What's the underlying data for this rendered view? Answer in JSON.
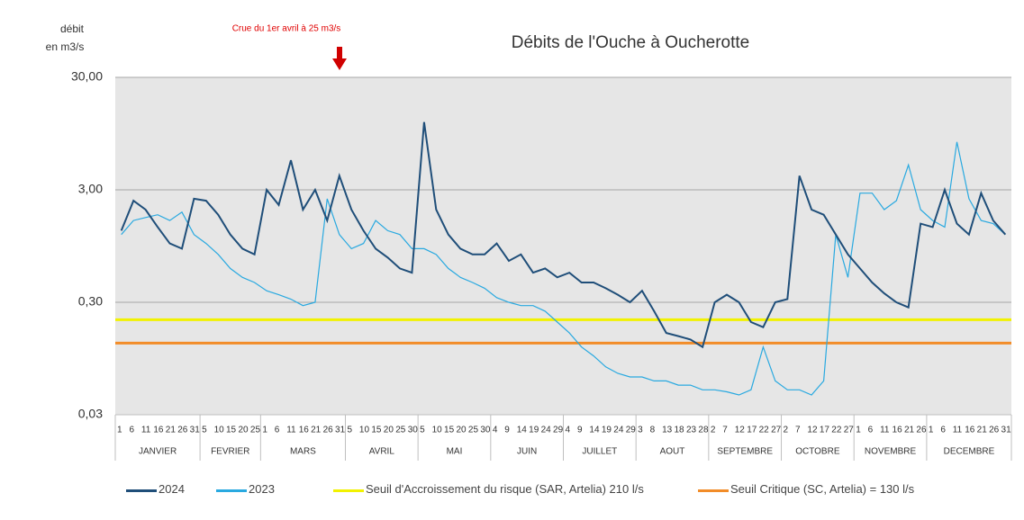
{
  "chart_data": {
    "type": "line",
    "title": "Débits de l'Ouche à Oucherotte",
    "y_label": [
      "débit",
      "en m3/s"
    ],
    "annotation": "Crue du 1er avril à 25 m3/s",
    "log_scale": true,
    "grid": true,
    "ylim": [
      0.03,
      30
    ],
    "yticks": [
      {
        "value": 0.03,
        "label": "0,03"
      },
      {
        "value": 0.3,
        "label": "0,30"
      },
      {
        "value": 3,
        "label": "3,00"
      },
      {
        "value": 30,
        "label": "30,00"
      }
    ],
    "month_groups": [
      {
        "label": "JANVIER",
        "days": [
          "1",
          "6",
          "11",
          "16",
          "21",
          "26",
          "31"
        ]
      },
      {
        "label": "FEVRIER",
        "days": [
          "5",
          "10",
          "15",
          "20",
          "25"
        ]
      },
      {
        "label": "MARS",
        "days": [
          "1",
          "6",
          "11",
          "16",
          "21",
          "26",
          "31"
        ]
      },
      {
        "label": "AVRIL",
        "days": [
          "5",
          "10",
          "15",
          "20",
          "25",
          "30"
        ]
      },
      {
        "label": "MAI",
        "days": [
          "5",
          "10",
          "15",
          "20",
          "25",
          "30"
        ]
      },
      {
        "label": "JUIN",
        "days": [
          "4",
          "9",
          "14",
          "19",
          "24",
          "29"
        ]
      },
      {
        "label": "JUILLET",
        "days": [
          "4",
          "9",
          "14",
          "19",
          "24",
          "29"
        ]
      },
      {
        "label": "AOUT",
        "days": [
          "3",
          "8",
          "13",
          "18",
          "23",
          "28"
        ]
      },
      {
        "label": "SEPTEMBRE",
        "days": [
          "2",
          "7",
          "12",
          "17",
          "22",
          "27"
        ]
      },
      {
        "label": "OCTOBRE",
        "days": [
          "2",
          "7",
          "12",
          "17",
          "22",
          "27"
        ]
      },
      {
        "label": "NOVEMBRE",
        "days": [
          "1",
          "6",
          "11",
          "16",
          "21",
          "26"
        ]
      },
      {
        "label": "DECEMBRE",
        "days": [
          "1",
          "6",
          "11",
          "16",
          "21",
          "26",
          "31"
        ]
      }
    ],
    "series": [
      {
        "name": "2024",
        "color": "#1f4e79",
        "values": [
          1.3,
          2.4,
          2.0,
          1.4,
          1.0,
          0.9,
          2.5,
          2.4,
          1.8,
          1.2,
          0.9,
          0.8,
          3.0,
          2.2,
          5.5,
          2.0,
          3.0,
          1.6,
          4.0,
          2.0,
          1.3,
          0.9,
          0.75,
          0.6,
          0.55,
          12,
          2.0,
          1.2,
          0.9,
          0.8,
          0.8,
          1.0,
          0.7,
          0.8,
          0.55,
          0.6,
          0.5,
          0.55,
          0.45,
          0.45,
          0.4,
          0.35,
          0.3,
          0.38,
          0.25,
          0.16,
          0.15,
          0.14,
          0.12,
          0.3,
          0.35,
          0.3,
          0.2,
          0.18,
          0.3,
          0.32,
          4.0,
          2.0,
          1.8,
          1.2,
          0.8,
          0.6,
          0.45,
          0.36,
          0.3,
          0.27,
          1.5,
          1.4,
          3.0,
          1.5,
          1.2,
          2.8,
          1.6,
          1.2
        ]
      },
      {
        "name": "2023",
        "color": "#29a9e0",
        "values": [
          1.2,
          1.6,
          1.7,
          1.8,
          1.6,
          1.9,
          1.2,
          1.0,
          0.8,
          0.6,
          0.5,
          0.45,
          0.38,
          0.35,
          0.32,
          0.28,
          0.3,
          2.5,
          1.2,
          0.9,
          1.0,
          1.6,
          1.3,
          1.2,
          0.9,
          0.9,
          0.8,
          0.6,
          0.5,
          0.45,
          0.4,
          0.33,
          0.3,
          0.28,
          0.28,
          0.25,
          0.2,
          0.16,
          0.12,
          0.1,
          0.08,
          0.07,
          0.065,
          0.065,
          0.06,
          0.06,
          0.055,
          0.055,
          0.05,
          0.05,
          0.048,
          0.045,
          0.05,
          0.12,
          0.06,
          0.05,
          0.05,
          0.045,
          0.06,
          1.2,
          0.5,
          2.8,
          2.8,
          2.0,
          2.4,
          5.0,
          2.0,
          1.6,
          1.4,
          8.0,
          2.5,
          1.6,
          1.5,
          1.2
        ]
      }
    ],
    "thresholds": [
      {
        "name": "Seuil d'Accroissement du risque (SAR, Artelia) 210 l/s",
        "color": "#f2f200",
        "value": 0.21
      },
      {
        "name": "Seuil Critique (SC, Artelia) = 130 l/s",
        "color": "#f28c28",
        "value": 0.13
      }
    ]
  }
}
